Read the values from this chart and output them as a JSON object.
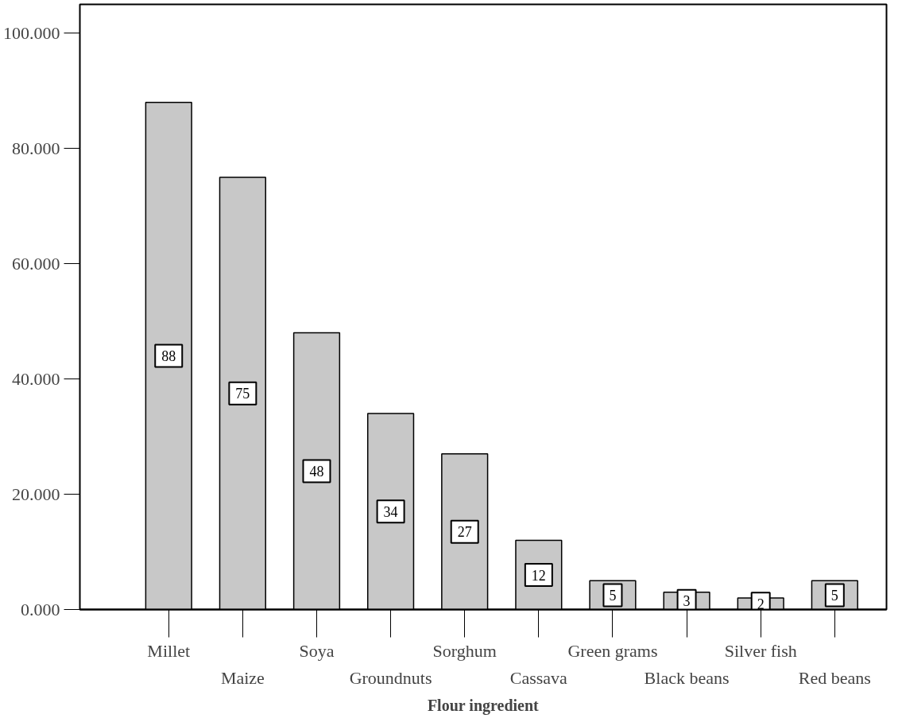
{
  "chart_data": {
    "type": "bar",
    "xlabel": "Flour ingredient",
    "categories": [
      "Millet",
      "Maize",
      "Soya",
      "Groundnuts",
      "Sorghum",
      "Cassava",
      "Green grams",
      "Black beans",
      "Silver fish",
      "Red beans"
    ],
    "values": [
      88,
      75,
      48,
      34,
      27,
      12,
      5,
      3,
      2,
      5
    ],
    "color": "#c8c8c8",
    "data_labels": true,
    "ylim": [
      0,
      105
    ],
    "yticks": [
      {
        "value": 0,
        "label": "0.000"
      },
      {
        "value": 20,
        "label": "20.000"
      },
      {
        "value": 40,
        "label": "40.000"
      },
      {
        "value": 60,
        "label": "60.000"
      },
      {
        "value": 80,
        "label": "80.000"
      },
      {
        "value": 100,
        "label": "100.000"
      }
    ],
    "grid": false
  }
}
